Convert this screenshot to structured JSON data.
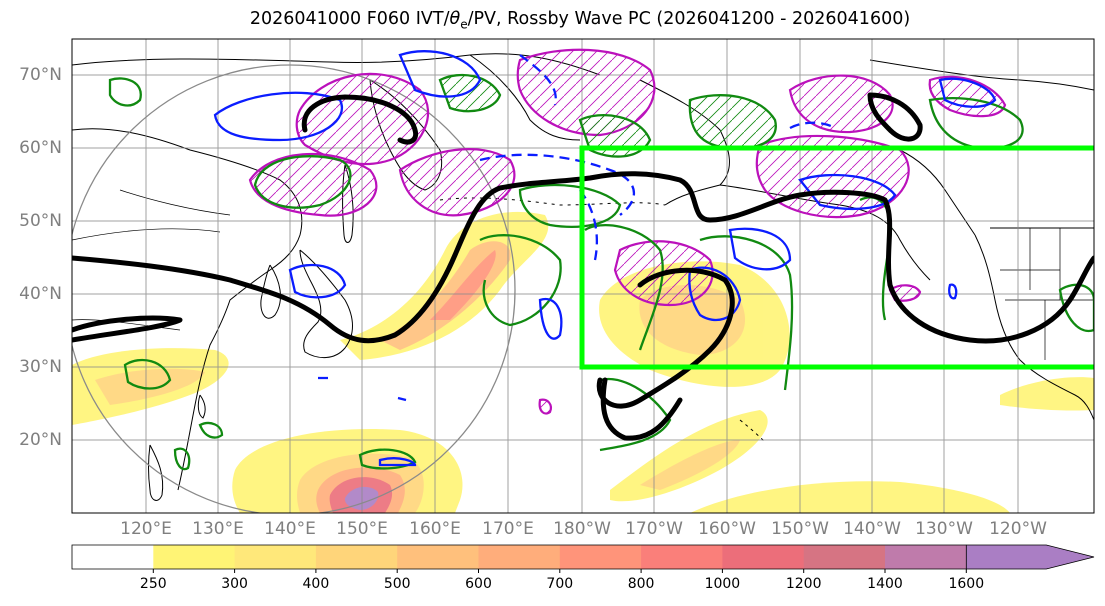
{
  "title": {
    "prefix": "2026041000 F060 IVT/",
    "theta": "θ",
    "theta_sub": "e",
    "suffix": "/PV, Rossby Wave PC (2026041200 - 2026041600)"
  },
  "map": {
    "lat_labels": [
      "70°N",
      "60°N",
      "50°N",
      "40°N",
      "30°N",
      "20°N"
    ],
    "lon_labels": [
      "120°E",
      "130°E",
      "140°E",
      "150°E",
      "160°E",
      "170°E",
      "180°W",
      "170°W",
      "160°W",
      "150°W",
      "140°W",
      "130°W",
      "120°W"
    ],
    "highlight_box": {
      "lon_range": [
        "180°W",
        "130°W+"
      ],
      "lat_range": [
        "30°N",
        "60°N"
      ],
      "color": "#00ff00"
    }
  },
  "colorbar": {
    "ticks": [
      "250",
      "300",
      "400",
      "500",
      "600",
      "700",
      "800",
      "1000",
      "1200",
      "1400",
      "1600"
    ],
    "colors": [
      "#fff475",
      "#ffe87a",
      "#ffd57a",
      "#ffc07c",
      "#ffad7b",
      "#ff947a",
      "#fa7f7a",
      "#ec6e7a",
      "#d67483",
      "#bf7bab",
      "#aa7ec4"
    ]
  },
  "colors": {
    "contour_black": "#000000",
    "pv_green": "#118a11",
    "theta_blue": "#0b1dff",
    "wave_magenta": "#bb11bb",
    "grid": "#8a8a8a"
  }
}
